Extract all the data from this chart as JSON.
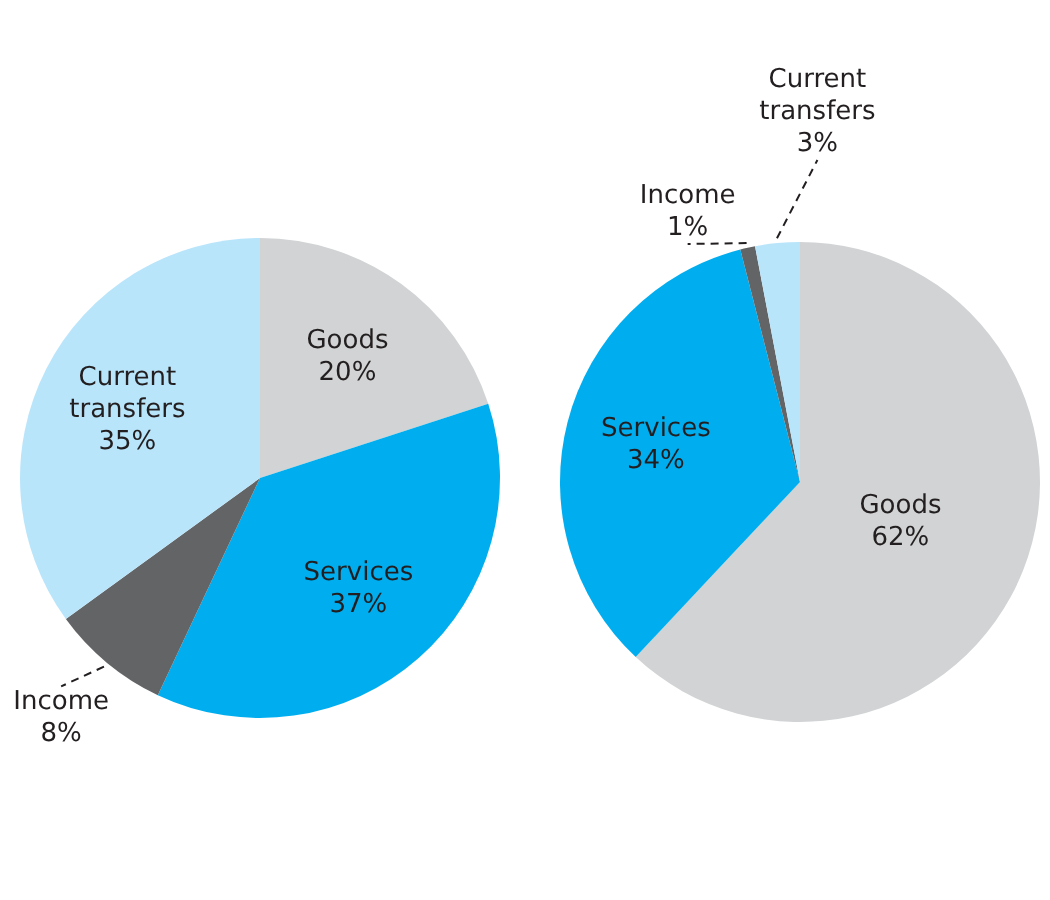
{
  "chart_data": [
    {
      "type": "pie",
      "categories": [
        "Goods",
        "Services",
        "Income",
        "Current transfers"
      ],
      "values": [
        20,
        37,
        8,
        35
      ],
      "colors": [
        "#d1d3d4",
        "#00aeef",
        "#636466",
        "#b9e5fb"
      ],
      "value_labels": [
        "20%",
        "37%",
        "8%",
        "35%"
      ],
      "legend": false
    },
    {
      "type": "pie",
      "categories": [
        "Goods",
        "Services",
        "Income",
        "Current transfers"
      ],
      "values": [
        62,
        34,
        1,
        3
      ],
      "colors": [
        "#d1d3d4",
        "#00aeef",
        "#636466",
        "#b9e5fb"
      ],
      "value_labels": [
        "62%",
        "34%",
        "1%",
        "3%"
      ],
      "legend": false
    }
  ]
}
